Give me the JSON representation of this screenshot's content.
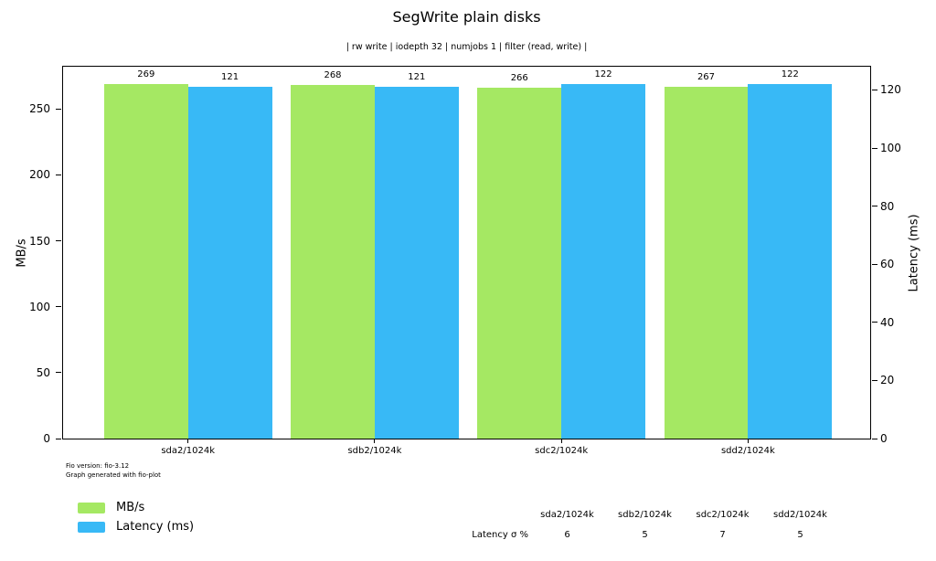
{
  "chart_data": {
    "type": "bar",
    "title": "SegWrite plain disks",
    "subtitle": "| rw write | iodepth 32 | numjobs 1 | filter (read, write) |",
    "categories": [
      "sda2/1024k",
      "sdb2/1024k",
      "sdc2/1024k",
      "sdd2/1024k"
    ],
    "series": [
      {
        "name": "MB/s",
        "axis": "left",
        "color": "#a5e863",
        "values": [
          269,
          268,
          266,
          267
        ]
      },
      {
        "name": "Latency (ms)",
        "axis": "right",
        "color": "#38b9f6",
        "values": [
          121,
          121,
          122,
          122
        ]
      }
    ],
    "left_axis": {
      "label": "MB/s",
      "ticks": [
        0,
        50,
        100,
        150,
        200,
        250
      ],
      "range": [
        0,
        282
      ]
    },
    "right_axis": {
      "label": "Latency (ms)",
      "ticks": [
        0,
        20,
        40,
        60,
        80,
        100,
        120
      ],
      "range": [
        0,
        128
      ]
    },
    "grid": false,
    "legend_position": "bottom-left",
    "bar_value_labels": true
  },
  "footer": {
    "line1": "Fio version: fio-3.12",
    "line2": "Graph generated with fio-plot"
  },
  "stats_table": {
    "row_label": "Latency σ %",
    "columns": [
      "sda2/1024k",
      "sdb2/1024k",
      "sdc2/1024k",
      "sdd2/1024k"
    ],
    "values": [
      6,
      5,
      7,
      5
    ]
  }
}
